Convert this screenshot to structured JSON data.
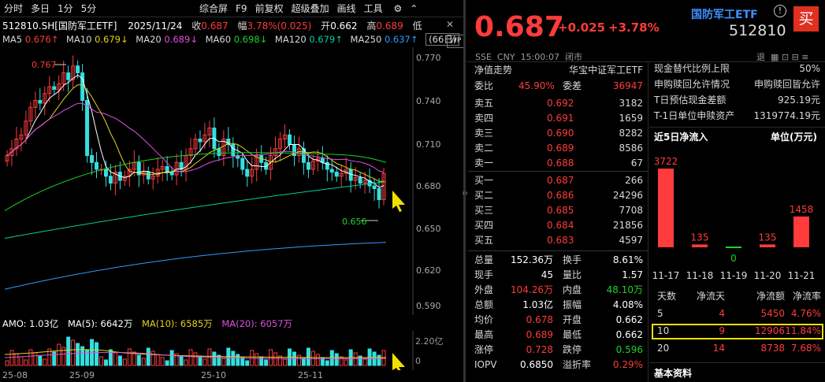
{
  "toolbar": {
    "tab1": "分时",
    "tab2": "多日",
    "tab3": "1分",
    "tab4": "5分",
    "b1": "综合屏",
    "b2": "F9",
    "b3": "前复权",
    "b4": "超级叠加",
    "b5": "画线",
    "b6": "工具"
  },
  "chart_header": {
    "code": "512810.SH[国防军工ETF]",
    "date": "2025/11/24",
    "close_label": "收",
    "close": "0.687",
    "amp_label": "幅",
    "amp": "3.78%(0.025)",
    "open_label": "开",
    "open": "0.662",
    "high_label": "高",
    "high": "0.689",
    "low_label": "低"
  },
  "ma": {
    "ma5": "MA5",
    "ma5v": "0.676↑",
    "ma10": "MA10",
    "ma10v": "0.679↓",
    "ma20": "MA20",
    "ma20v": "0.689↓",
    "ma60": "MA60",
    "ma60v": "0.698↓",
    "ma120": "MA120",
    "ma120v": "0.679↑",
    "ma250": "MA250",
    "ma250v": "0.637↑",
    "days": "(66日)"
  },
  "price_axis": [
    "0.770",
    "0.740",
    "0.710",
    "0.680",
    "0.650",
    "0.620",
    "0.590"
  ],
  "peak_label": "0.767",
  "trough_label": "0.656",
  "volume": {
    "amo": "AMO: 1.03亿",
    "ma5": "MA(5): 6642万",
    "ma10": "MA(10): 6585万",
    "ma20": "MA(20): 6057万",
    "axis_top": "2.20亿",
    "axis_zero": "0"
  },
  "date_axis": [
    "25-08",
    "25-09",
    "25-10",
    "25-11"
  ],
  "quote": {
    "price": "0.687",
    "change": "+0.025",
    "pct": "+3.78%",
    "name": "国防军工ETF",
    "code": "512810",
    "buy_btn": "买",
    "market": "SSE",
    "currency": "CNY",
    "time": "15:00:07",
    "status": "闭市"
  },
  "nav": {
    "label": "净值走势",
    "fund": "华宝中证军工ETF"
  },
  "weibi": {
    "l1": "委比",
    "v1": "45.90%",
    "l2": "委差",
    "v2": "36947"
  },
  "asks": [
    {
      "l": "卖五",
      "p": "0.692",
      "v": "3182"
    },
    {
      "l": "卖四",
      "p": "0.691",
      "v": "1659"
    },
    {
      "l": "卖三",
      "p": "0.690",
      "v": "8282"
    },
    {
      "l": "卖二",
      "p": "0.689",
      "v": "8586"
    },
    {
      "l": "卖一",
      "p": "0.688",
      "v": "67"
    }
  ],
  "bids": [
    {
      "l": "买一",
      "p": "0.687",
      "v": "266"
    },
    {
      "l": "买二",
      "p": "0.686",
      "v": "24296"
    },
    {
      "l": "买三",
      "p": "0.685",
      "v": "7708"
    },
    {
      "l": "买四",
      "p": "0.684",
      "v": "21856"
    },
    {
      "l": "买五",
      "p": "0.683",
      "v": "4597"
    }
  ],
  "stats": [
    {
      "l1": "总量",
      "v1": "152.36万",
      "l2": "换手",
      "v2": "8.61%",
      "c1": "white",
      "c2": "white"
    },
    {
      "l1": "现手",
      "v1": "45",
      "l2": "量比",
      "v2": "1.57",
      "c1": "white",
      "c2": "white"
    },
    {
      "l1": "外盘",
      "v1": "104.26万",
      "l2": "内盘",
      "v2": "48.10万",
      "c1": "red",
      "c2": "green"
    },
    {
      "l1": "总额",
      "v1": "1.03亿",
      "l2": "振幅",
      "v2": "4.08%",
      "c1": "white",
      "c2": "white"
    },
    {
      "l1": "均价",
      "v1": "0.678",
      "l2": "开盘",
      "v2": "0.662",
      "c1": "red",
      "c2": "white"
    },
    {
      "l1": "最高",
      "v1": "0.689",
      "l2": "最低",
      "v2": "0.662",
      "c1": "red",
      "c2": "white"
    },
    {
      "l1": "涨停",
      "v1": "0.728",
      "l2": "跌停",
      "v2": "0.596",
      "c1": "red",
      "c2": "green"
    },
    {
      "l1": "IOPV",
      "v1": "0.6850",
      "l2": "溢折率",
      "v2": "0.29%",
      "c1": "white",
      "c2": "red"
    }
  ],
  "right_info": [
    {
      "l": "现金替代比例上限",
      "v": "50%"
    },
    {
      "l": "申购赎回允许情况",
      "v": "申购赎回皆允许"
    },
    {
      "l": "T日预估现金差额",
      "v": "925.19元"
    },
    {
      "l": "T-1日单位申赎资产",
      "v": "1319774.19元"
    }
  ],
  "flow": {
    "title": "近5日净流入",
    "unit": "单位(万元)",
    "dates": [
      "11-17",
      "11-18",
      "11-19",
      "11-20",
      "11-21"
    ],
    "values": [
      3722,
      135,
      0,
      135,
      1458
    ],
    "labels": [
      "3722",
      "135",
      "0",
      "135",
      "1458"
    ]
  },
  "flow_table": {
    "headers": [
      "天数",
      "净流天",
      "净流额",
      "净流率"
    ],
    "rows": [
      [
        "5",
        "4",
        "5450",
        "4.76%"
      ],
      [
        "10",
        "9",
        "12906",
        "11.84%"
      ],
      [
        "20",
        "14",
        "8738",
        "7.68%"
      ]
    ]
  },
  "footer": {
    "basic": "基本资料"
  },
  "colors": {
    "up": "#ff3b3b",
    "down": "#1fd12a",
    "highlight": "#f0e000"
  }
}
